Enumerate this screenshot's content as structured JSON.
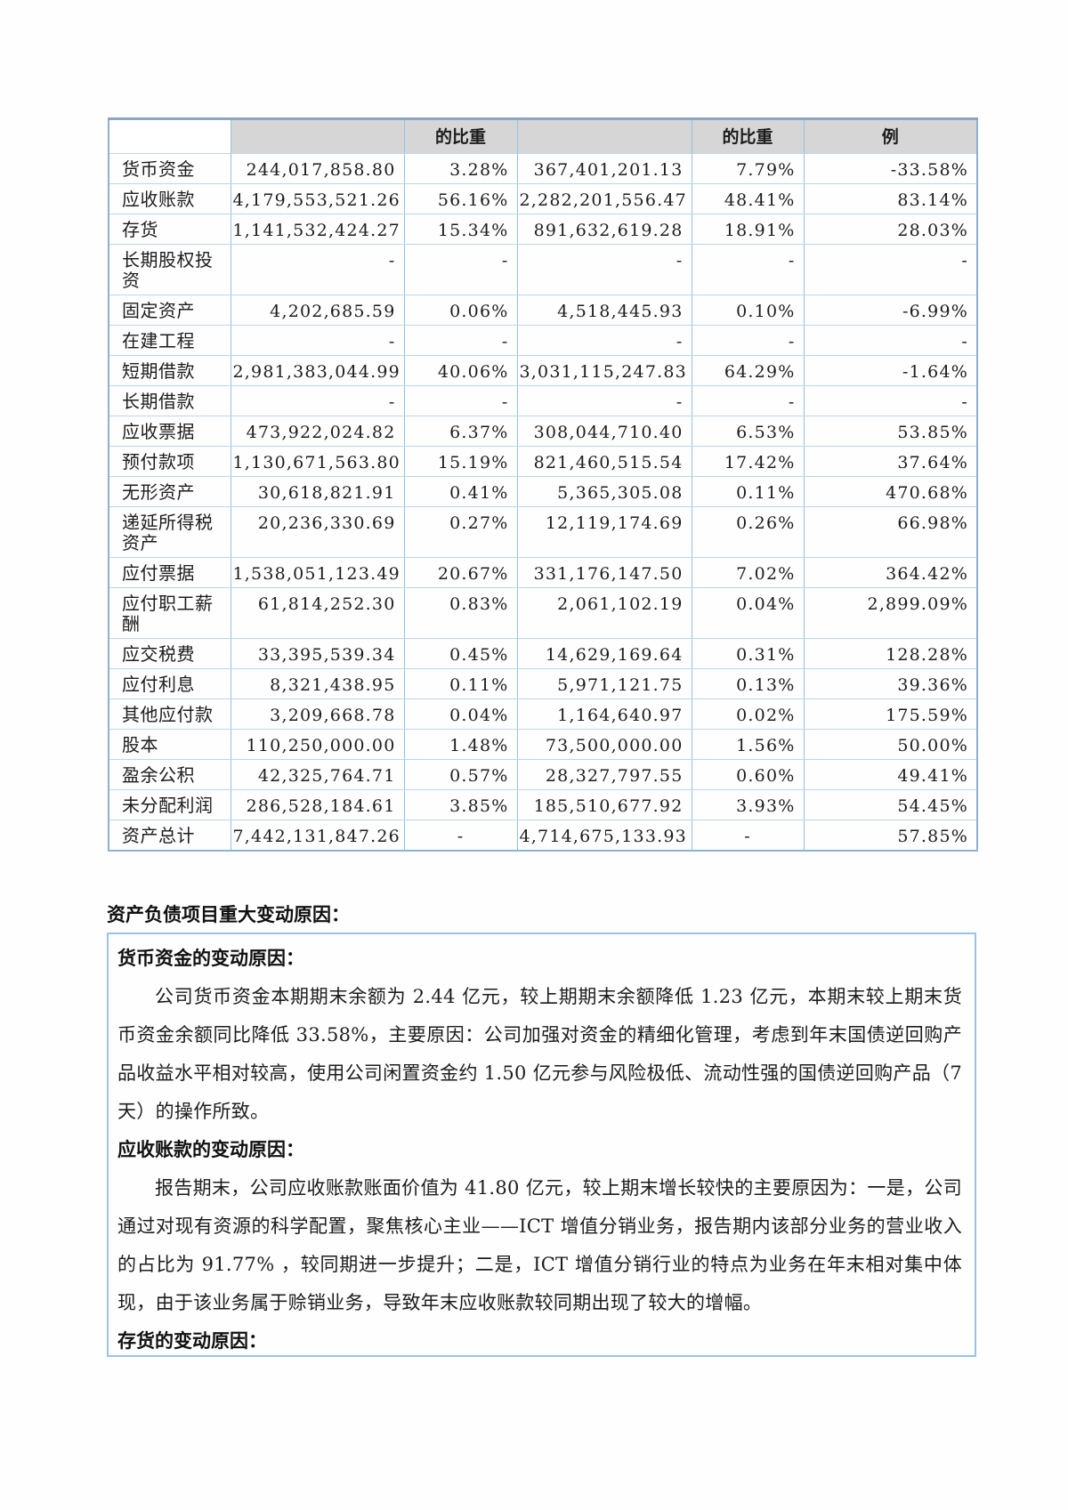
{
  "colors": {
    "table_border_blue": "#8FB0CF",
    "grid_blue": "#93C2E0",
    "row_line_blue": "#B9D8EC",
    "header_gray": "#D6D6D6",
    "notes_border_blue": "#9CC3E6",
    "text": "#1C1C1C"
  },
  "table": {
    "header": [
      "",
      "",
      "的比重",
      "",
      "的比重",
      "例"
    ],
    "rows": [
      {
        "label": "货币资金",
        "amount_now": "244,017,858.80",
        "ratio_now": "3.28%",
        "amount_prev": "367,401,201.13",
        "ratio_prev": "7.79%",
        "change": "-33.58%",
        "two_line": false,
        "is_total": false
      },
      {
        "label": "应收账款",
        "amount_now": "4,179,553,521.26",
        "ratio_now": "56.16%",
        "amount_prev": "2,282,201,556.47",
        "ratio_prev": "48.41%",
        "change": "83.14%",
        "two_line": false,
        "is_total": false
      },
      {
        "label": "存货",
        "amount_now": "1,141,532,424.27",
        "ratio_now": "15.34%",
        "amount_prev": "891,632,619.28",
        "ratio_prev": "18.91%",
        "change": "28.03%",
        "two_line": false,
        "is_total": false
      },
      {
        "label": "长期股权投资",
        "amount_now": "-",
        "ratio_now": "-",
        "amount_prev": "-",
        "ratio_prev": "-",
        "change": "-",
        "two_line": true,
        "is_total": false
      },
      {
        "label": "固定资产",
        "amount_now": "4,202,685.59",
        "ratio_now": "0.06%",
        "amount_prev": "4,518,445.93",
        "ratio_prev": "0.10%",
        "change": "-6.99%",
        "two_line": false,
        "is_total": false
      },
      {
        "label": "在建工程",
        "amount_now": "-",
        "ratio_now": "-",
        "amount_prev": "-",
        "ratio_prev": "-",
        "change": "-",
        "two_line": false,
        "is_total": false
      },
      {
        "label": "短期借款",
        "amount_now": "2,981,383,044.99",
        "ratio_now": "40.06%",
        "amount_prev": "3,031,115,247.83",
        "ratio_prev": "64.29%",
        "change": "-1.64%",
        "two_line": false,
        "is_total": false
      },
      {
        "label": "长期借款",
        "amount_now": "-",
        "ratio_now": "-",
        "amount_prev": "-",
        "ratio_prev": "-",
        "change": "-",
        "two_line": false,
        "is_total": false
      },
      {
        "label": "应收票据",
        "amount_now": "473,922,024.82",
        "ratio_now": "6.37%",
        "amount_prev": "308,044,710.40",
        "ratio_prev": "6.53%",
        "change": "53.85%",
        "two_line": false,
        "is_total": false
      },
      {
        "label": "预付款项",
        "amount_now": "1,130,671,563.80",
        "ratio_now": "15.19%",
        "amount_prev": "821,460,515.54",
        "ratio_prev": "17.42%",
        "change": "37.64%",
        "two_line": false,
        "is_total": false
      },
      {
        "label": "无形资产",
        "amount_now": "30,618,821.91",
        "ratio_now": "0.41%",
        "amount_prev": "5,365,305.08",
        "ratio_prev": "0.11%",
        "change": "470.68%",
        "two_line": false,
        "is_total": false
      },
      {
        "label": "递延所得税资产",
        "amount_now": "20,236,330.69",
        "ratio_now": "0.27%",
        "amount_prev": "12,119,174.69",
        "ratio_prev": "0.26%",
        "change": "66.98%",
        "two_line": true,
        "is_total": false
      },
      {
        "label": "应付票据",
        "amount_now": "1,538,051,123.49",
        "ratio_now": "20.67%",
        "amount_prev": "331,176,147.50",
        "ratio_prev": "7.02%",
        "change": "364.42%",
        "two_line": false,
        "is_total": false
      },
      {
        "label": "应付职工薪酬",
        "amount_now": "61,814,252.30",
        "ratio_now": "0.83%",
        "amount_prev": "2,061,102.19",
        "ratio_prev": "0.04%",
        "change": "2,899.09%",
        "two_line": true,
        "is_total": false
      },
      {
        "label": "应交税费",
        "amount_now": "33,395,539.34",
        "ratio_now": "0.45%",
        "amount_prev": "14,629,169.64",
        "ratio_prev": "0.31%",
        "change": "128.28%",
        "two_line": false,
        "is_total": false
      },
      {
        "label": "应付利息",
        "amount_now": "8,321,438.95",
        "ratio_now": "0.11%",
        "amount_prev": "5,971,121.75",
        "ratio_prev": "0.13%",
        "change": "39.36%",
        "two_line": false,
        "is_total": false
      },
      {
        "label": "其他应付款",
        "amount_now": "3,209,668.78",
        "ratio_now": "0.04%",
        "amount_prev": "1,164,640.97",
        "ratio_prev": "0.02%",
        "change": "175.59%",
        "two_line": false,
        "is_total": false
      },
      {
        "label": "股本",
        "amount_now": "110,250,000.00",
        "ratio_now": "1.48%",
        "amount_prev": "73,500,000.00",
        "ratio_prev": "1.56%",
        "change": "50.00%",
        "two_line": false,
        "is_total": false
      },
      {
        "label": "盈余公积",
        "amount_now": "42,325,764.71",
        "ratio_now": "0.57%",
        "amount_prev": "28,327,797.55",
        "ratio_prev": "0.60%",
        "change": "49.41%",
        "two_line": false,
        "is_total": false
      },
      {
        "label": "未分配利润",
        "amount_now": "286,528,184.61",
        "ratio_now": "3.85%",
        "amount_prev": "185,510,677.92",
        "ratio_prev": "3.93%",
        "change": "54.45%",
        "two_line": false,
        "is_total": false
      },
      {
        "label": "资产总计",
        "amount_now": "7,442,131,847.26",
        "ratio_now": "-",
        "amount_prev": "4,714,675,133.93",
        "ratio_prev": "-",
        "change": "57.85%",
        "two_line": false,
        "is_total": true
      }
    ]
  },
  "notes": {
    "section_heading": "资产负债项目重大变动原因：",
    "items": [
      {
        "heading": "货币资金的变动原因：",
        "paragraph": "公司货币资金本期期末余额为 2.44 亿元，较上期期末余额降低 1.23 亿元，本期末较上期末货币资金余额同比降低 33.58%，主要原因：公司加强对资金的精细化管理，考虑到年末国债逆回购产品收益水平相对较高，使用公司闲置资金约 1.50 亿元参与风险极低、流动性强的国债逆回购产品（7 天）的操作所致。"
      },
      {
        "heading": "应收账款的变动原因：",
        "paragraph": "报告期末，公司应收账款账面价值为 41.80 亿元，较上期末增长较快的主要原因为：一是，公司通过对现有资源的科学配置，聚焦核心主业——ICT 增值分销业务，报告期内该部分业务的营业收入的占比为 91.77% ，较同期进一步提升；二是，ICT 增值分销行业的特点为业务在年末相对集中体现，由于该业务属于赊销业务，导致年末应收账款较同期出现了较大的增幅。"
      },
      {
        "heading": "存货的变动原因：",
        "paragraph": ""
      }
    ]
  }
}
